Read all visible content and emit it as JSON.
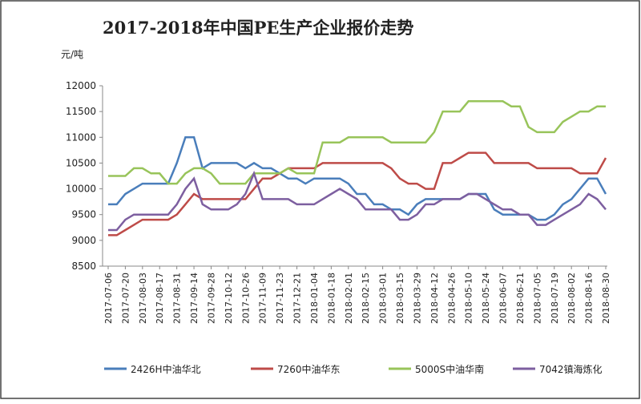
{
  "chart_data": {
    "type": "line",
    "title": "2017-2018年中国PE生产企业报价走势",
    "y_label": "元/吨",
    "categories": [
      "2017-07-06",
      null,
      "2017-07-20",
      null,
      "2017-08-03",
      null,
      "2017-08-17",
      null,
      "2017-08-31",
      null,
      "2017-09-14",
      null,
      "2017-09-28",
      null,
      "2017-10-12",
      null,
      "2017-10-26",
      null,
      "2017-11-09",
      null,
      "2017-11-23",
      null,
      "2017-12-21",
      null,
      "2018-01-04",
      null,
      "2018-01-18",
      null,
      "2018-02-01",
      null,
      "2018-02-15",
      null,
      "2018-03-01",
      null,
      "2018-03-15",
      null,
      "2018-03-29",
      null,
      "2018-04-12",
      null,
      "2018-04-26",
      null,
      "2018-05-10",
      null,
      "2018-05-24",
      null,
      "2018-06-07",
      null,
      "2018-06-21",
      null,
      "2018-07-05",
      null,
      "2018-07-19",
      null,
      "2018-08-02",
      null,
      "2018-08-16",
      null,
      "2018-08-30"
    ],
    "series": [
      {
        "name": "2426H中油华北",
        "color": "#4a7ebb",
        "values": [
          9700,
          9700,
          9900,
          10000,
          10100,
          10100,
          10100,
          10100,
          10500,
          11000,
          11000,
          10400,
          10500,
          10500,
          10500,
          10500,
          10400,
          10500,
          10400,
          10400,
          10300,
          10200,
          10200,
          10100,
          10200,
          10200,
          10200,
          10200,
          10100,
          9900,
          9900,
          9700,
          9700,
          9600,
          9600,
          9500,
          9700,
          9800,
          9800,
          9800,
          9800,
          9800,
          9900,
          9900,
          9900,
          9600,
          9500,
          9500,
          9500,
          9500,
          9400,
          9400,
          9500,
          9700,
          9800,
          10000,
          10200,
          10200,
          9900
        ]
      },
      {
        "name": "7260中油华东",
        "color": "#be4b48",
        "values": [
          9100,
          9100,
          9200,
          9300,
          9400,
          9400,
          9400,
          9400,
          9500,
          9700,
          9900,
          9800,
          9800,
          9800,
          9800,
          9800,
          9800,
          10000,
          10200,
          10200,
          10300,
          10400,
          10400,
          10400,
          10400,
          10500,
          10500,
          10500,
          10500,
          10500,
          10500,
          10500,
          10500,
          10400,
          10200,
          10100,
          10100,
          10000,
          10000,
          10500,
          10500,
          10600,
          10700,
          10700,
          10700,
          10500,
          10500,
          10500,
          10500,
          10500,
          10400,
          10400,
          10400,
          10400,
          10400,
          10300,
          10300,
          10300,
          10600
        ]
      },
      {
        "name": "5000S中油华南",
        "color": "#98c45a",
        "values": [
          10250,
          10250,
          10250,
          10400,
          10400,
          10300,
          10300,
          10100,
          10100,
          10300,
          10400,
          10400,
          10300,
          10100,
          10100,
          10100,
          10100,
          10300,
          10300,
          10300,
          10300,
          10400,
          10300,
          10300,
          10300,
          10900,
          10900,
          10900,
          11000,
          11000,
          11000,
          11000,
          11000,
          10900,
          10900,
          10900,
          10900,
          10900,
          11100,
          11500,
          11500,
          11500,
          11700,
          11700,
          11700,
          11700,
          11700,
          11600,
          11600,
          11200,
          11100,
          11100,
          11100,
          11300,
          11400,
          11500,
          11500,
          11600,
          11600
        ]
      },
      {
        "name": "7042镇海炼化",
        "color": "#7d5fa0",
        "values": [
          9200,
          9200,
          9400,
          9500,
          9500,
          9500,
          9500,
          9500,
          9700,
          10000,
          10200,
          9700,
          9600,
          9600,
          9600,
          9700,
          9900,
          10300,
          9800,
          9800,
          9800,
          9800,
          9700,
          9700,
          9700,
          9800,
          9900,
          10000,
          9900,
          9800,
          9600,
          9600,
          9600,
          9600,
          9400,
          9400,
          9500,
          9700,
          9700,
          9800,
          9800,
          9800,
          9900,
          9900,
          9800,
          9700,
          9600,
          9600,
          9500,
          9500,
          9300,
          9300,
          9400,
          9500,
          9600,
          9700,
          9900,
          9800,
          9600
        ]
      }
    ],
    "ylim": [
      8500,
      12000
    ],
    "yticks": [
      8500,
      9000,
      9500,
      10000,
      10500,
      11000,
      11500,
      12000
    ],
    "grid": false
  }
}
